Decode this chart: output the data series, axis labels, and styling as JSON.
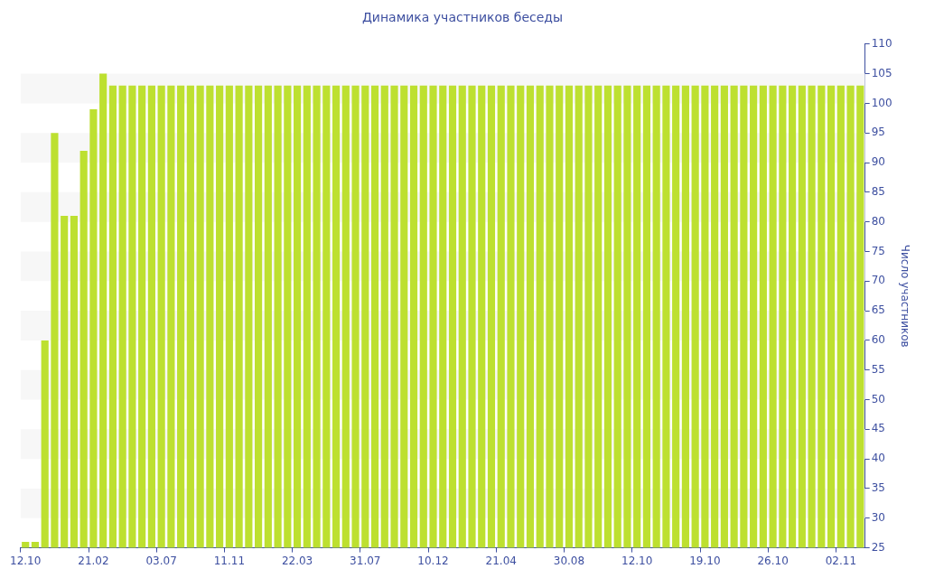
{
  "chart_data": {
    "type": "bar",
    "title": "Динамика участников беседы",
    "ylabel": "Число участников",
    "categories": [
      "12.10",
      null,
      null,
      null,
      null,
      null,
      null,
      "21.02",
      null,
      null,
      null,
      null,
      null,
      null,
      "03.07",
      null,
      null,
      null,
      null,
      null,
      null,
      "11.11",
      null,
      null,
      null,
      null,
      null,
      null,
      "22.03",
      null,
      null,
      null,
      null,
      null,
      null,
      "31.07",
      null,
      null,
      null,
      null,
      null,
      null,
      "10.12",
      null,
      null,
      null,
      null,
      null,
      null,
      "21.04",
      null,
      null,
      null,
      null,
      null,
      null,
      "30.08",
      null,
      null,
      null,
      null,
      null,
      null,
      "12.10",
      null,
      null,
      null,
      null,
      null,
      null,
      "19.10",
      null,
      null,
      null,
      null,
      null,
      null,
      "26.10",
      null,
      null,
      null,
      null,
      null,
      null,
      "02.11",
      null,
      null
    ],
    "values": [
      26,
      26,
      60,
      95,
      81,
      81,
      92,
      99,
      105,
      103,
      103,
      103,
      103,
      103,
      103,
      103,
      103,
      103,
      103,
      103,
      103,
      103,
      103,
      103,
      103,
      103,
      103,
      103,
      103,
      103,
      103,
      103,
      103,
      103,
      103,
      103,
      103,
      103,
      103,
      103,
      103,
      103,
      103,
      103,
      103,
      103,
      103,
      103,
      103,
      103,
      103,
      103,
      103,
      103,
      103,
      103,
      103,
      103,
      103,
      103,
      103,
      103,
      103,
      103,
      103,
      103,
      103,
      103,
      103,
      103,
      103,
      103,
      103,
      103,
      103,
      103,
      103,
      103,
      103,
      103,
      103,
      103,
      103,
      103,
      103,
      103,
      103
    ],
    "color": "#bde030",
    "ylim": [
      25,
      110
    ],
    "yticks": [
      25,
      30,
      35,
      40,
      45,
      50,
      55,
      60,
      65,
      70,
      75,
      80,
      85,
      90,
      95,
      100,
      105,
      110
    ],
    "bands": [
      {
        "axis": "y",
        "from": 30,
        "to": 35,
        "color": "#f7f7f7"
      },
      {
        "axis": "y",
        "from": 40,
        "to": 45,
        "color": "#f7f7f7"
      },
      {
        "axis": "y",
        "from": 50,
        "to": 55,
        "color": "#f7f7f7"
      },
      {
        "axis": "y",
        "from": 60,
        "to": 65,
        "color": "#f7f7f7"
      },
      {
        "axis": "y",
        "from": 70,
        "to": 75,
        "color": "#f7f7f7"
      },
      {
        "axis": "y",
        "from": 80,
        "to": 85,
        "color": "#f7f7f7"
      },
      {
        "axis": "y",
        "from": 90,
        "to": 95,
        "color": "#f7f7f7"
      },
      {
        "axis": "y",
        "from": 100,
        "to": 105,
        "color": "#f7f7f7"
      }
    ],
    "legend": false
  }
}
